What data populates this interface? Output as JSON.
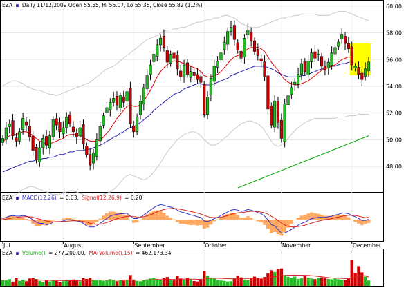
{
  "header": {
    "symbol": "EZA",
    "dot": "▪",
    "price_info": "Daily 11/12/2009 Open 55.55, Hi 56.07, Lo 55.36, Close 55.82 (1.2%)"
  },
  "macd_header": {
    "symbol": "EZA",
    "dot": "▪",
    "macd_label": "MACD(12,26)",
    "macd_value": "= 0.03,",
    "signal_label": "Signal(12,26,9)",
    "signal_value": "= 0.20"
  },
  "volume_header": {
    "symbol": "EZA",
    "dot": "▪",
    "volume_label": "Volume()",
    "volume_value": "= 277,200.00,",
    "ma_label": "MA(Volume(),15)",
    "ma_value": "= 462,173.34"
  },
  "colors": {
    "up": "#22bb22",
    "down": "#cc0000",
    "ma_short": "#dd0000",
    "ma_mid": "#2222aa",
    "ma_long": "#00aa00",
    "band": "#c8c8c8",
    "highlight": "#ffff00",
    "macd_line": "#3333cc",
    "signal_line": "#dd2222",
    "histogram": "#ffa860"
  },
  "chart_data": [
    {
      "type": "candlestick",
      "name": "price",
      "ylim": [
        46.2,
        60.3
      ],
      "y_ticks": [
        "60.00",
        "58.00",
        "56.00",
        "54.00",
        "52.00",
        "50.00",
        "48.00"
      ],
      "y_tick_values": [
        60,
        58,
        56,
        54,
        52,
        50,
        48
      ],
      "x_labels": [
        "Jul",
        "August",
        "September",
        "October",
        "November",
        "December"
      ],
      "x_label_index": [
        0,
        18,
        39,
        60,
        83,
        104
      ],
      "closes": [
        50.1,
        50.9,
        51.2,
        50.3,
        49.9,
        50.6,
        51.6,
        51.1,
        50.2,
        49.2,
        48.5,
        49.4,
        50.1,
        49.6,
        50.3,
        51.5,
        51.1,
        50.6,
        50.9,
        51.7,
        51.2,
        50.6,
        50.2,
        50.9,
        49.7,
        48.9,
        48.1,
        49.0,
        50.0,
        51.0,
        51.8,
        52.4,
        52.8,
        53.1,
        52.6,
        53.3,
        52.8,
        53.6,
        51.2,
        50.6,
        51.7,
        52.9,
        53.9,
        54.8,
        55.6,
        56.4,
        57.1,
        57.6,
        56.9,
        55.8,
        56.4,
        56.1,
        55.3,
        54.7,
        55.6,
        54.9,
        55.1,
        54.8,
        54.5,
        54.3,
        51.9,
        53.2,
        54.6,
        55.5,
        55.9,
        56.5,
        57.3,
        58.1,
        58.4,
        57.5,
        56.7,
        56.1,
        57.6,
        58.2,
        57.4,
        56.6,
        56.3,
        55.9,
        54.7,
        52.3,
        51.1,
        52.9,
        51.3,
        50.1,
        52.7,
        53.3,
        53.9,
        54.3,
        54.9,
        55.7,
        55.1,
        55.9,
        56.5,
        56.1,
        56.4,
        55.5,
        55.2,
        55.8,
        56.5,
        56.9,
        57.3,
        57.9,
        57.2,
        56.8,
        55.6,
        55.5,
        54.9,
        54.5,
        55.3,
        55.82
      ],
      "ma_short": [
        49.8,
        50.1,
        50.3,
        50.4,
        50.4,
        50.5,
        50.6,
        50.6,
        50.5,
        50.3,
        50.1,
        49.9,
        49.8,
        49.7,
        49.7,
        49.8,
        49.9,
        50.0,
        50.1,
        50.3,
        50.4,
        50.4,
        50.4,
        50.3,
        50.2,
        50.0,
        49.9,
        49.9,
        49.9,
        50.0,
        50.2,
        50.5,
        50.8,
        51.2,
        51.6,
        51.9,
        52.2,
        52.5,
        52.6,
        52.5,
        52.5,
        52.6,
        52.9,
        53.3,
        53.7,
        54.2,
        54.7,
        55.1,
        55.4,
        55.6,
        55.8,
        55.9,
        55.9,
        55.8,
        55.7,
        55.6,
        55.5,
        55.4,
        55.3,
        55.1,
        54.8,
        54.7,
        54.7,
        54.8,
        54.9,
        55.1,
        55.4,
        55.7,
        56.0,
        56.2,
        56.3,
        56.4,
        56.6,
        56.8,
        56.9,
        56.9,
        56.9,
        56.8,
        56.6,
        56.2,
        55.8,
        55.5,
        55.2,
        54.8,
        54.5,
        54.3,
        54.2,
        54.1,
        54.1,
        54.2,
        54.3,
        54.4,
        54.6,
        54.8,
        55.0,
        55.2,
        55.3,
        55.4,
        55.5,
        55.6,
        55.8,
        56.0,
        56.1,
        56.2,
        56.1,
        56.0,
        55.9,
        55.8,
        55.8,
        55.9
      ],
      "ma_mid": [
        47.6,
        47.7,
        47.8,
        47.9,
        48.0,
        48.1,
        48.2,
        48.3,
        48.4,
        48.4,
        48.5,
        48.5,
        48.6,
        48.6,
        48.7,
        48.7,
        48.8,
        48.9,
        48.9,
        49.0,
        49.1,
        49.1,
        49.2,
        49.2,
        49.2,
        49.3,
        49.3,
        49.4,
        49.5,
        49.6,
        49.7,
        49.9,
        50.0,
        50.2,
        50.3,
        50.5,
        50.6,
        50.8,
        50.9,
        51.0,
        51.1,
        51.3,
        51.5,
        51.7,
        51.9,
        52.2,
        52.4,
        52.6,
        52.8,
        53.0,
        53.2,
        53.4,
        53.5,
        53.6,
        53.8,
        53.9,
        54.0,
        54.1,
        54.2,
        54.2,
        54.1,
        54.1,
        54.1,
        54.2,
        54.3,
        54.4,
        54.5,
        54.6,
        54.8,
        54.9,
        55.0,
        55.1,
        55.2,
        55.3,
        55.4,
        55.5,
        55.5,
        55.5,
        55.5,
        55.4,
        55.3,
        55.2,
        55.0,
        54.9,
        54.8,
        54.7,
        54.7,
        54.7,
        54.7,
        54.8,
        54.8,
        54.9,
        55.0,
        55.1,
        55.2,
        55.3,
        55.3,
        55.4,
        55.5,
        55.5,
        55.6,
        55.7,
        55.7,
        55.8,
        55.8,
        55.8,
        55.8,
        55.8,
        55.8,
        55.8
      ],
      "ma_long_start_index": 70,
      "ma_long": [
        46.4,
        46.5,
        46.6,
        46.7,
        46.8,
        46.9,
        47.0,
        47.1,
        47.2,
        47.3,
        47.4,
        47.5,
        47.6,
        47.7,
        47.8,
        47.9,
        48.0,
        48.1,
        48.2,
        48.3,
        48.4,
        48.5,
        48.6,
        48.7,
        48.8,
        48.9,
        49.0,
        49.1,
        49.2,
        49.3,
        49.4,
        49.5,
        49.6,
        49.7,
        49.8,
        49.9,
        50.0,
        50.1,
        50.2,
        50.3
      ],
      "band_upper": [
        54.0,
        54.2,
        54.3,
        54.4,
        54.4,
        54.3,
        54.2,
        54.0,
        53.9,
        53.8,
        53.7,
        53.7,
        53.6,
        53.5,
        53.4,
        53.4,
        53.3,
        53.4,
        53.5,
        53.6,
        53.7,
        53.8,
        53.9,
        54.0,
        54.1,
        54.2,
        54.3,
        54.5,
        54.7,
        54.9,
        55.1,
        55.3,
        55.4,
        55.5,
        55.7,
        55.9,
        56.1,
        56.3,
        56.5,
        56.7,
        56.9,
        57.1,
        57.3,
        57.5,
        57.6,
        57.7,
        57.8,
        58.0,
        58.1,
        58.2,
        58.2,
        58.3,
        58.3,
        58.4,
        58.4,
        58.5,
        58.6,
        58.7,
        58.8,
        58.8,
        58.9,
        59.0,
        59.0,
        59.1,
        59.1,
        59.2,
        59.3,
        59.3,
        59.2,
        59.1,
        58.9,
        58.7,
        58.6,
        58.5,
        58.4,
        58.4,
        58.4,
        58.5,
        58.6,
        58.7,
        58.8,
        58.9,
        59.0,
        59.1,
        59.1,
        59.2,
        59.2,
        59.3,
        59.3,
        59.4,
        59.4,
        59.4,
        59.4,
        59.4,
        59.3,
        59.3,
        59.3,
        59.3,
        59.4,
        59.5,
        59.6,
        59.6,
        59.6,
        59.5,
        59.4,
        59.3,
        59.2,
        59.1,
        59.0,
        58.9
      ],
      "band_lower": [
        45.4,
        45.5,
        45.6,
        45.8,
        45.9,
        46.1,
        46.3,
        46.4,
        46.5,
        46.5,
        46.4,
        46.3,
        46.2,
        46.1,
        46.0,
        45.9,
        45.9,
        45.9,
        46.0,
        46.1,
        46.2,
        46.2,
        46.1,
        46.0,
        45.9,
        45.8,
        45.7,
        45.7,
        45.7,
        45.8,
        45.9,
        46.0,
        46.1,
        46.3,
        46.5,
        46.8,
        47.1,
        47.3,
        47.4,
        47.3,
        47.2,
        47.1,
        47.0,
        47.1,
        47.3,
        47.6,
        47.9,
        48.3,
        48.7,
        49.1,
        49.4,
        49.7,
        50.0,
        50.2,
        50.4,
        50.5,
        50.6,
        50.6,
        50.5,
        50.3,
        50.0,
        49.8,
        49.6,
        49.6,
        49.7,
        49.9,
        50.1,
        50.3,
        50.6,
        50.8,
        51.0,
        51.2,
        51.3,
        51.4,
        51.4,
        51.3,
        51.2,
        51.0,
        50.7,
        50.3,
        49.9,
        49.6,
        49.5,
        49.6,
        49.8,
        50.1,
        50.4,
        50.7,
        50.9,
        51.1,
        51.3,
        51.4,
        51.5,
        51.6,
        51.6,
        51.6,
        51.6,
        51.6,
        51.6,
        51.6,
        51.7,
        51.7,
        51.7,
        51.8,
        51.8,
        51.8,
        51.9,
        51.9,
        51.9,
        51.9
      ]
    },
    {
      "type": "line",
      "name": "macd",
      "ylim": [
        -1.7,
        1.5
      ],
      "macd": [
        0.1,
        0.2,
        0.3,
        0.35,
        0.3,
        0.3,
        0.35,
        0.3,
        0.2,
        0.0,
        -0.2,
        -0.3,
        -0.3,
        -0.4,
        -0.35,
        -0.2,
        -0.15,
        -0.15,
        -0.1,
        0.0,
        0.0,
        -0.05,
        -0.1,
        -0.15,
        -0.3,
        -0.5,
        -0.6,
        -0.6,
        -0.5,
        -0.3,
        -0.1,
        0.1,
        0.3,
        0.4,
        0.45,
        0.5,
        0.5,
        0.55,
        0.3,
        0.1,
        0.1,
        0.2,
        0.4,
        0.6,
        0.8,
        1.0,
        1.15,
        1.25,
        1.2,
        1.1,
        1.05,
        0.95,
        0.8,
        0.65,
        0.6,
        0.5,
        0.4,
        0.35,
        0.25,
        0.2,
        -0.1,
        -0.15,
        -0.05,
        0.1,
        0.2,
        0.35,
        0.5,
        0.65,
        0.8,
        0.85,
        0.8,
        0.7,
        0.75,
        0.85,
        0.8,
        0.7,
        0.6,
        0.5,
        0.3,
        0.0,
        -0.4,
        -0.5,
        -0.8,
        -1.1,
        -1.1,
        -0.95,
        -0.8,
        -0.6,
        -0.45,
        -0.3,
        -0.2,
        -0.05,
        0.1,
        0.15,
        0.2,
        0.2,
        0.2,
        0.25,
        0.3,
        0.4,
        0.45,
        0.55,
        0.55,
        0.5,
        0.35,
        0.25,
        0.1,
        -0.05,
        -0.05,
        0.03
      ],
      "signal": [
        0.0,
        0.05,
        0.1,
        0.15,
        0.2,
        0.22,
        0.25,
        0.26,
        0.25,
        0.2,
        0.12,
        0.05,
        -0.02,
        -0.1,
        -0.15,
        -0.16,
        -0.16,
        -0.16,
        -0.15,
        -0.12,
        -0.1,
        -0.09,
        -0.09,
        -0.1,
        -0.14,
        -0.21,
        -0.29,
        -0.35,
        -0.38,
        -0.36,
        -0.31,
        -0.23,
        -0.12,
        -0.02,
        0.08,
        0.16,
        0.23,
        0.29,
        0.3,
        0.26,
        0.23,
        0.22,
        0.26,
        0.32,
        0.42,
        0.53,
        0.66,
        0.77,
        0.85,
        0.9,
        0.93,
        0.93,
        0.91,
        0.86,
        0.81,
        0.75,
        0.68,
        0.62,
        0.55,
        0.48,
        0.36,
        0.26,
        0.2,
        0.18,
        0.18,
        0.21,
        0.27,
        0.35,
        0.44,
        0.52,
        0.58,
        0.6,
        0.63,
        0.67,
        0.7,
        0.7,
        0.68,
        0.64,
        0.57,
        0.46,
        0.29,
        0.13,
        -0.06,
        -0.27,
        -0.44,
        -0.54,
        -0.59,
        -0.59,
        -0.56,
        -0.51,
        -0.45,
        -0.37,
        -0.28,
        -0.19,
        -0.11,
        -0.05,
        0.0,
        0.05,
        0.1,
        0.16,
        0.22,
        0.29,
        0.34,
        0.37,
        0.37,
        0.35,
        0.3,
        0.23,
        0.17,
        0.2
      ]
    },
    {
      "type": "bar",
      "name": "volume",
      "ylim": [
        0,
        1500000
      ],
      "volume": [
        310000,
        280000,
        350000,
        220000,
        410000,
        260000,
        300000,
        240000,
        380000,
        420000,
        350000,
        260000,
        210000,
        280000,
        230000,
        300000,
        260000,
        190000,
        240000,
        300000,
        260000,
        330000,
        280000,
        240000,
        400000,
        360000,
        420000,
        320000,
        280000,
        300000,
        260000,
        310000,
        350000,
        280000,
        240000,
        300000,
        270000,
        320000,
        560000,
        310000,
        260000,
        240000,
        300000,
        340000,
        380000,
        420000,
        360000,
        310000,
        400000,
        460000,
        300000,
        280000,
        500000,
        380000,
        300000,
        420000,
        360000,
        250000,
        230000,
        300000,
        780000,
        520000,
        430000,
        380000,
        300000,
        280000,
        260000,
        230000,
        240000,
        380000,
        520000,
        440000,
        330000,
        300000,
        420000,
        480000,
        380000,
        360000,
        460000,
        640000,
        810000,
        720000,
        870000,
        900000,
        560000,
        470000,
        420000,
        480000,
        360000,
        400000,
        500000,
        430000,
        380000,
        350000,
        410000,
        440000,
        390000,
        360000,
        340000,
        380000,
        340000,
        320000,
        300000,
        420000,
        1350000,
        680000,
        1020000,
        700000,
        480000,
        277200
      ],
      "volume_ma": [
        300000,
        300000,
        305000,
        300000,
        310000,
        305000,
        300000,
        295000,
        300000,
        310000,
        315000,
        305000,
        295000,
        290000,
        285000,
        285000,
        280000,
        275000,
        270000,
        270000,
        268000,
        272000,
        272000,
        270000,
        280000,
        288000,
        300000,
        305000,
        305000,
        305000,
        300000,
        300000,
        302000,
        300000,
        296000,
        296000,
        294000,
        294000,
        310000,
        310000,
        305000,
        300000,
        300000,
        305000,
        310000,
        320000,
        325000,
        325000,
        330000,
        340000,
        335000,
        330000,
        340000,
        345000,
        345000,
        350000,
        350000,
        345000,
        340000,
        340000,
        370000,
        385000,
        395000,
        398000,
        395000,
        390000,
        385000,
        375000,
        368000,
        370000,
        380000,
        385000,
        385000,
        383000,
        385000,
        390000,
        392000,
        393000,
        398000,
        415000,
        445000,
        470000,
        500000,
        530000,
        545000,
        550000,
        552000,
        558000,
        555000,
        552000,
        550000,
        545000,
        530000,
        510000,
        490000,
        470000,
        450000,
        430000,
        410000,
        400000,
        395000,
        390000,
        380000,
        382000,
        440000,
        465000,
        500000,
        520000,
        520000,
        462173
      ]
    }
  ]
}
